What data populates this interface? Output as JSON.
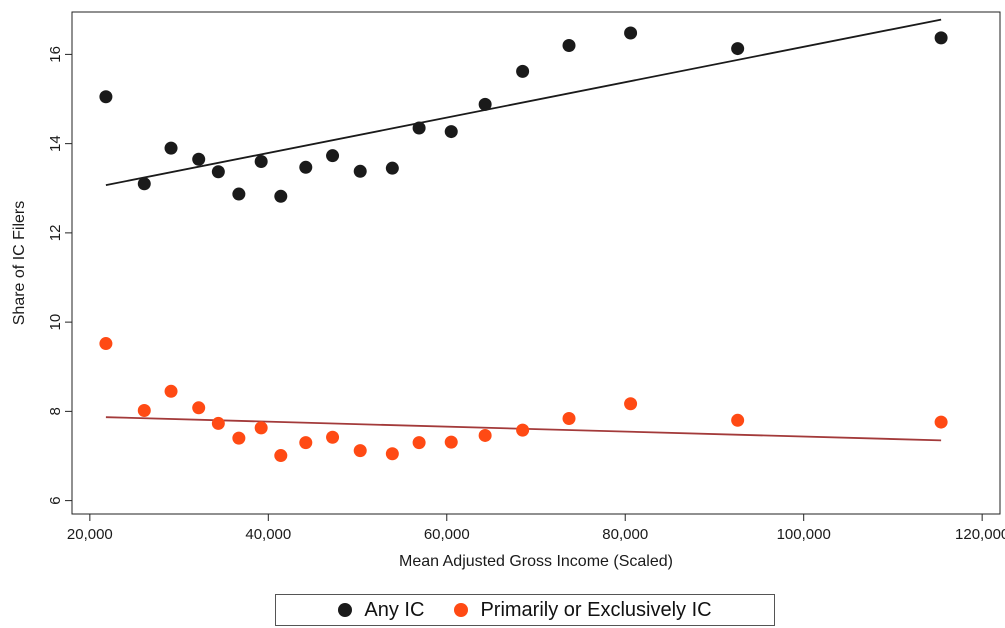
{
  "chart_data": {
    "type": "scatter",
    "title": "",
    "xlabel": "Mean Adjusted Gross Income (Scaled)",
    "ylabel": "Share of IC Filers",
    "xlim": [
      18000,
      122000
    ],
    "ylim": [
      5.7,
      16.95
    ],
    "x_ticks": [
      20000,
      40000,
      60000,
      80000,
      100000,
      120000
    ],
    "x_tick_labels": [
      "20,000",
      "40,000",
      "60,000",
      "80,000",
      "100,000",
      "120,000"
    ],
    "y_ticks": [
      6,
      8,
      10,
      12,
      14,
      16
    ],
    "y_tick_labels": [
      "6",
      "8",
      "10",
      "12",
      "14",
      "16"
    ],
    "grid": false,
    "legend_position": "bottom",
    "series": [
      {
        "name": "Any IC",
        "color": "#1a1a1a",
        "x": [
          21800,
          26100,
          29100,
          32200,
          34400,
          36700,
          39200,
          41400,
          44200,
          47200,
          50300,
          53900,
          56900,
          60500,
          64300,
          68500,
          73700,
          80600,
          92600,
          115400
        ],
        "y": [
          15.05,
          13.1,
          13.9,
          13.65,
          13.37,
          12.87,
          13.6,
          12.82,
          13.47,
          13.73,
          13.38,
          13.45,
          14.35,
          14.27,
          14.88,
          15.62,
          16.2,
          16.48,
          16.13,
          16.37
        ],
        "fit": {
          "x": [
            21800,
            115400
          ],
          "y": [
            13.07,
            16.78
          ],
          "color": "#1a1a1a"
        }
      },
      {
        "name": "Primarily or Exclusively IC",
        "color": "#ff4a14",
        "x": [
          21800,
          26100,
          29100,
          32200,
          34400,
          36700,
          39200,
          41400,
          44200,
          47200,
          50300,
          53900,
          56900,
          60500,
          64300,
          68500,
          73700,
          80600,
          92600,
          115400
        ],
        "y": [
          9.52,
          8.02,
          8.45,
          8.08,
          7.73,
          7.4,
          7.63,
          7.01,
          7.3,
          7.42,
          7.12,
          7.05,
          7.3,
          7.31,
          7.46,
          7.58,
          7.84,
          8.17,
          7.8,
          7.76
        ],
        "fit": {
          "x": [
            21800,
            115400
          ],
          "y": [
            7.87,
            7.35
          ],
          "color": "#a33a3a"
        }
      }
    ]
  }
}
